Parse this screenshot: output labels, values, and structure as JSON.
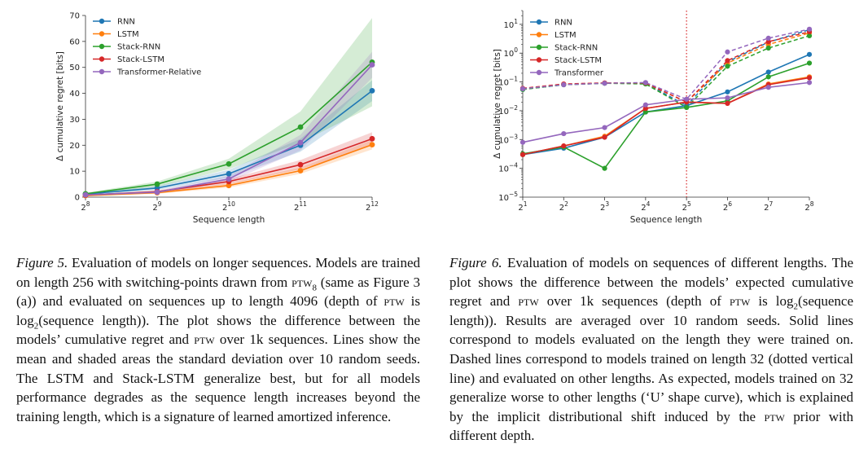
{
  "figures": [
    {
      "id": "fig5",
      "chart_data": {
        "type": "line",
        "xlabel": "Sequence length",
        "ylabel": "Δ cumulative regret [bits]",
        "xscale": "log2",
        "x": [
          256,
          512,
          1024,
          2048,
          4096
        ],
        "x_tick_labels": [
          [
            "2",
            "8"
          ],
          [
            "2",
            "9"
          ],
          [
            "2",
            "10"
          ],
          [
            "2",
            "11"
          ],
          [
            "2",
            "12"
          ]
        ],
        "yscale": "linear",
        "ylim": [
          0,
          70
        ],
        "y_ticks": [
          0,
          10,
          20,
          30,
          40,
          50,
          60,
          70
        ],
        "legend_position": "upper-left",
        "grid": false,
        "series": [
          {
            "name": "RNN",
            "color": "#1f77b4",
            "values": [
              1.2,
              3.5,
              9.0,
              20.0,
              41.0
            ],
            "std": [
              0.3,
              0.8,
              1.5,
              2.5,
              4.0
            ]
          },
          {
            "name": "LSTM",
            "color": "#ff7f0e",
            "values": [
              0.6,
              1.7,
              4.5,
              10.2,
              20.2
            ],
            "std": [
              0.2,
              0.4,
              0.8,
              1.2,
              1.8
            ]
          },
          {
            "name": "Stack-RNN",
            "color": "#2ca02c",
            "values": [
              1.3,
              5.0,
              12.8,
              27.0,
              52.0
            ],
            "std": [
              0.4,
              1.0,
              2.0,
              6.0,
              17.0
            ]
          },
          {
            "name": "Stack-LSTM",
            "color": "#d62728",
            "values": [
              0.8,
              2.1,
              6.0,
              12.5,
              22.5
            ],
            "std": [
              0.2,
              0.5,
              1.0,
              1.8,
              2.5
            ]
          },
          {
            "name": "Transformer-Relative",
            "color": "#9467bd",
            "values": [
              0.9,
              1.9,
              7.0,
              21.0,
              51.0
            ],
            "std": [
              0.2,
              0.5,
              1.2,
              3.0,
              5.0
            ]
          }
        ]
      }
    },
    {
      "id": "fig6",
      "chart_data": {
        "type": "line",
        "xlabel": "Sequence length",
        "ylabel": "Δ cumulative regret [bits]",
        "xscale": "log2",
        "x": [
          2,
          4,
          8,
          16,
          32,
          64,
          128,
          256
        ],
        "x_tick_labels": [
          [
            "2",
            "1"
          ],
          [
            "2",
            "2"
          ],
          [
            "2",
            "3"
          ],
          [
            "2",
            "4"
          ],
          [
            "2",
            "5"
          ],
          [
            "2",
            "6"
          ],
          [
            "2",
            "7"
          ],
          [
            "2",
            "8"
          ]
        ],
        "yscale": "log10",
        "ylim": [
          1e-05,
          30
        ],
        "y_tick_labels": [
          [
            "10",
            "−5"
          ],
          [
            "10",
            "−4"
          ],
          [
            "10",
            "−3"
          ],
          [
            "10",
            "−2"
          ],
          [
            "10",
            "−1"
          ],
          [
            "10",
            "0"
          ],
          [
            "10",
            "1"
          ]
        ],
        "vline": {
          "x": 32,
          "color": "#d62728",
          "style": "dotted"
        },
        "legend_position": "upper-left",
        "grid": false,
        "series": [
          {
            "name": "RNN",
            "color": "#1f77b4",
            "solid": [
              0.0003,
              0.0005,
              0.0012,
              0.009,
              0.015,
              0.045,
              0.22,
              0.9
            ],
            "dashed": [
              0.055,
              0.08,
              0.09,
              0.09,
              0.015,
              0.5,
              2.4,
              6.5
            ]
          },
          {
            "name": "LSTM",
            "color": "#ff7f0e",
            "solid": [
              0.0003,
              0.0006,
              0.0013,
              0.012,
              0.02,
              0.018,
              0.085,
              0.15
            ],
            "dashed": [
              0.057,
              0.082,
              0.092,
              0.09,
              0.02,
              0.45,
              2.0,
              5.0
            ]
          },
          {
            "name": "Stack-RNN",
            "color": "#2ca02c",
            "solid": [
              0.00032,
              0.00055,
              0.0001,
              0.009,
              0.013,
              0.022,
              0.15,
              0.45
            ],
            "dashed": [
              0.055,
              0.08,
              0.09,
              0.085,
              0.013,
              0.35,
              1.5,
              4.0
            ]
          },
          {
            "name": "Stack-LSTM",
            "color": "#d62728",
            "solid": [
              0.0003,
              0.0006,
              0.0012,
              0.012,
              0.02,
              0.018,
              0.08,
              0.14
            ],
            "dashed": [
              0.06,
              0.085,
              0.092,
              0.092,
              0.02,
              0.55,
              2.5,
              5.5
            ]
          },
          {
            "name": "Transformer",
            "color": "#9467bd",
            "solid": [
              0.0008,
              0.0016,
              0.0026,
              0.016,
              0.025,
              0.028,
              0.065,
              0.095
            ],
            "dashed": [
              0.058,
              0.08,
              0.09,
              0.095,
              0.025,
              1.1,
              3.3,
              6.8
            ]
          }
        ]
      }
    }
  ],
  "captions": {
    "fig5": {
      "label": "Figure 5.",
      "p1": " Evaluation of models on longer sequences. Models are trained on length 256 with switching-points drawn from ",
      "ptw": "ptw",
      "ptw_sub": "8",
      "p2": " (same as Figure 3 (a)) and evaluated on sequences up to length 4096 (depth of ",
      "ptw2": "ptw",
      "p3": " is log",
      "log_sub": "2",
      "p4": "(sequence length)). The plot shows the difference between the models’ cumulative regret and ",
      "ptw3": "ptw",
      "p5": " over 1k sequences. Lines show the mean and shaded areas the standard deviation over 10 random seeds. The LSTM and Stack-LSTM generalize best, but for all models performance degrades as the sequence length increases beyond the training length, which is a signature of learned amortized inference."
    },
    "fig6": {
      "label": "Figure 6.",
      "p1": " Evaluation of models on sequences of different lengths. The plot shows the difference between the models’ expected cumulative regret and ",
      "ptw": "ptw",
      "p2": " over 1k sequences (depth of ",
      "ptw2": "ptw",
      "p3": " is log",
      "log_sub": "2",
      "p4": "(sequence length)). Results are averaged over 10 random seeds. Solid lines correspond to models evaluated on the length they were trained on. Dashed lines correspond to models trained on length 32 (dotted vertical line) and evaluated on other lengths. As expected, models trained on 32 generalize worse to other lengths (‘U’ shape curve), which is explained by the implicit distributional shift induced by the ",
      "ptw3": "ptw",
      "p5": " prior with different depth."
    }
  }
}
